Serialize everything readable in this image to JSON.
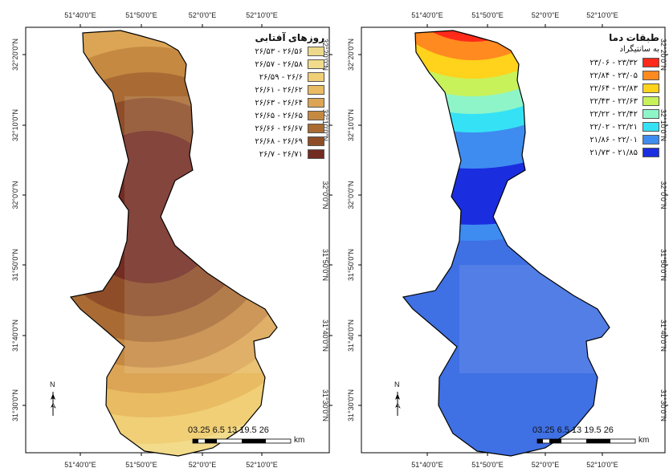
{
  "maps": {
    "left": {
      "legend": {
        "title": "روزهای آفتابی",
        "classes": [
          {
            "label": "۲۶/۵۶ - ۲۶/۵۳",
            "color": "#ecd98a"
          },
          {
            "label": "۲۶/۵۸ - ۲۶/۵۷",
            "color": "#f2dc8c"
          },
          {
            "label": "۲۶/۶ - ۲۶/۵۹",
            "color": "#f0cf77"
          },
          {
            "label": "۲۶/۶۲ - ۲۶/۶۱",
            "color": "#e9bb62"
          },
          {
            "label": "۲۶/۶۴ - ۲۶/۶۳",
            "color": "#dca555"
          },
          {
            "label": "۲۶/۶۵ - ۲۶/۶۵",
            "color": "#c58942"
          },
          {
            "label": "۲۶/۶۷ - ۲۶/۶۶",
            "color": "#a96b33"
          },
          {
            "label": "۲۶/۶۹ - ۲۶/۶۸",
            "color": "#8e4d28"
          },
          {
            "label": "۲۶/۷۱ - ۲۶/۷",
            "color": "#732c22"
          }
        ]
      },
      "lat_ticks": [
        "32°20'0\"N",
        "32°10'0\"N",
        "32°0'0\"N",
        "31°50'0\"N",
        "31°40'0\"N",
        "31°30'0\"N"
      ],
      "lon_ticks_top": [
        "51°40'0\"E",
        "51°50'0\"E",
        "52°0'0\"E",
        "52°10'0\"E"
      ],
      "lon_ticks_bottom": [
        "51°40'0\"E",
        "51°50'0\"E",
        "52°0'0\"E",
        "52°10'0\"E"
      ]
    },
    "right": {
      "legend": {
        "title": "طبقات دما",
        "subtitle": "به سانتیگراد",
        "classes": [
          {
            "label": "۲۳/۳۲ - ۲۳/۰۶",
            "color": "#ff2a1a"
          },
          {
            "label": "۲۳/۰۵ - ۲۲/۸۴",
            "color": "#ff8a1f"
          },
          {
            "label": "۲۲/۸۳ - ۲۲/۶۴",
            "color": "#ffd21c"
          },
          {
            "label": "۲۲/۶۳ - ۲۲/۴۳",
            "color": "#c8f25a"
          },
          {
            "label": "۲۲/۴۲ - ۲۲/۲۲",
            "color": "#8ef5c8"
          },
          {
            "label": "۲۲/۲۱ - ۲۲/۰۲",
            "color": "#35e2f5"
          },
          {
            "label": "۲۲/۰۱ - ۲۱/۸۶",
            "color": "#3f8cf0"
          },
          {
            "label": "۲۱/۸۵ - ۲۱/۷۳",
            "color": "#1a2ee0"
          }
        ]
      },
      "lat_ticks": [
        "32°20'0\"N",
        "32°10'0\"N",
        "32°0'0\"N",
        "31°50'0\"N",
        "31°40'0\"N",
        "31°30'0\"N"
      ],
      "lon_ticks_top": [
        "51°40'0\"E",
        "51°50'0\"E",
        "52°0'0\"E",
        "52°10'0\"E"
      ],
      "lon_ticks_bottom": [
        "51°40'0\"E",
        "51°50'0\"E",
        "52°0'0\"E",
        "52°10'0\"E"
      ]
    }
  },
  "scale_bar": {
    "numbers": "03.25 6.5 13 19.5 26",
    "unit": "km"
  },
  "north_label": "N"
}
